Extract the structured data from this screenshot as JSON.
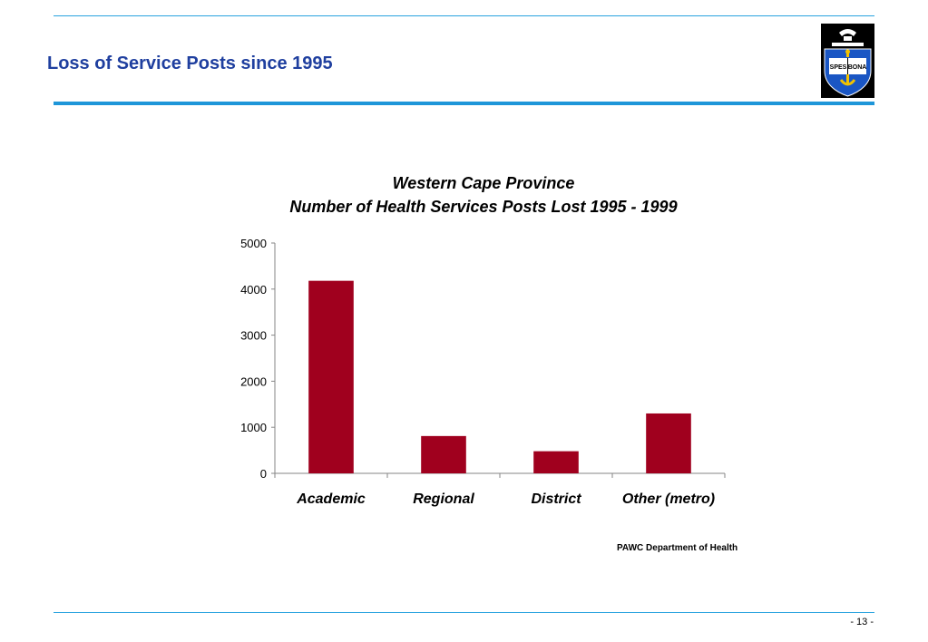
{
  "slide": {
    "title": "Loss of Service Posts since 1995",
    "page_number": "- 13 -",
    "logo_text_left": "SPES",
    "logo_text_right": "BONA",
    "accent_color": "#1f3f9f",
    "rule_color": "#1e96d9"
  },
  "chart_data": {
    "type": "bar",
    "title_lines": [
      "Western Cape Province",
      "Number of Health Services Posts Lost 1995 - 1999"
    ],
    "categories": [
      "Academic",
      "Regional",
      "District",
      "Other (metro)"
    ],
    "series": [
      {
        "values": [
          4180,
          810,
          480,
          1300
        ]
      }
    ],
    "ylim": [
      0,
      5000
    ],
    "yticks": [
      "0",
      "1000",
      "2000",
      "3000",
      "4000",
      "5000"
    ],
    "xlabel": "",
    "ylabel": "",
    "grid": false,
    "legend": "none",
    "bar_color": "#a0001e",
    "source": "PAWC Department of Health"
  }
}
